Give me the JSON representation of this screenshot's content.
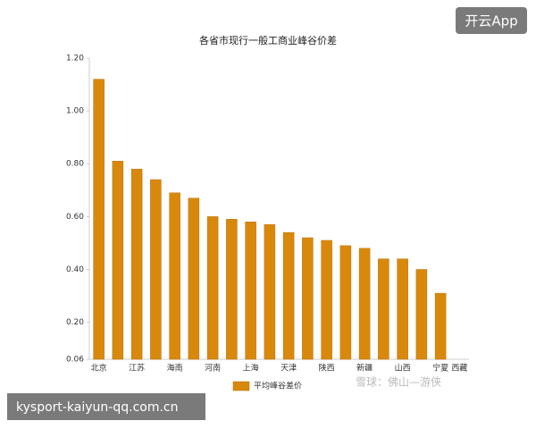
{
  "chart_data": {
    "type": "bar",
    "title": "各省市现行一般工商业峰谷价差",
    "categories": [
      "北京",
      null,
      "江苏",
      null,
      "海南",
      null,
      "河南",
      null,
      "上海",
      null,
      "天津",
      null,
      "陕西",
      null,
      "新疆",
      null,
      "山西",
      null,
      "宁夏",
      "西藏"
    ],
    "series": [
      {
        "name": "平均峰谷差价",
        "color": "#d8890c",
        "values": [
          1.12,
          0.81,
          0.78,
          0.74,
          0.69,
          0.67,
          0.6,
          0.59,
          0.58,
          0.57,
          0.54,
          0.52,
          0.51,
          0.49,
          0.48,
          0.44,
          0.44,
          0.4,
          0.31,
          null
        ]
      }
    ],
    "ylim": [
      0.06,
      1.2
    ],
    "yticks": [
      0.06,
      {
        "value": 0.2,
        "label": "0.20"
      },
      {
        "value": 0.4,
        "label": "0.40"
      },
      {
        "value": 0.6,
        "label": "0.60"
      },
      {
        "value": 0.8,
        "label": "0.80"
      },
      {
        "value": 1.0,
        "label": "1.00"
      },
      {
        "value": 1.2,
        "label": "1.20"
      }
    ],
    "grid": false,
    "legend": "bottom"
  },
  "watermarks": {
    "app": "开云App",
    "site": "kysport-kaiyun-qq.com.cn",
    "source": "雪球：佛山—游侠"
  }
}
